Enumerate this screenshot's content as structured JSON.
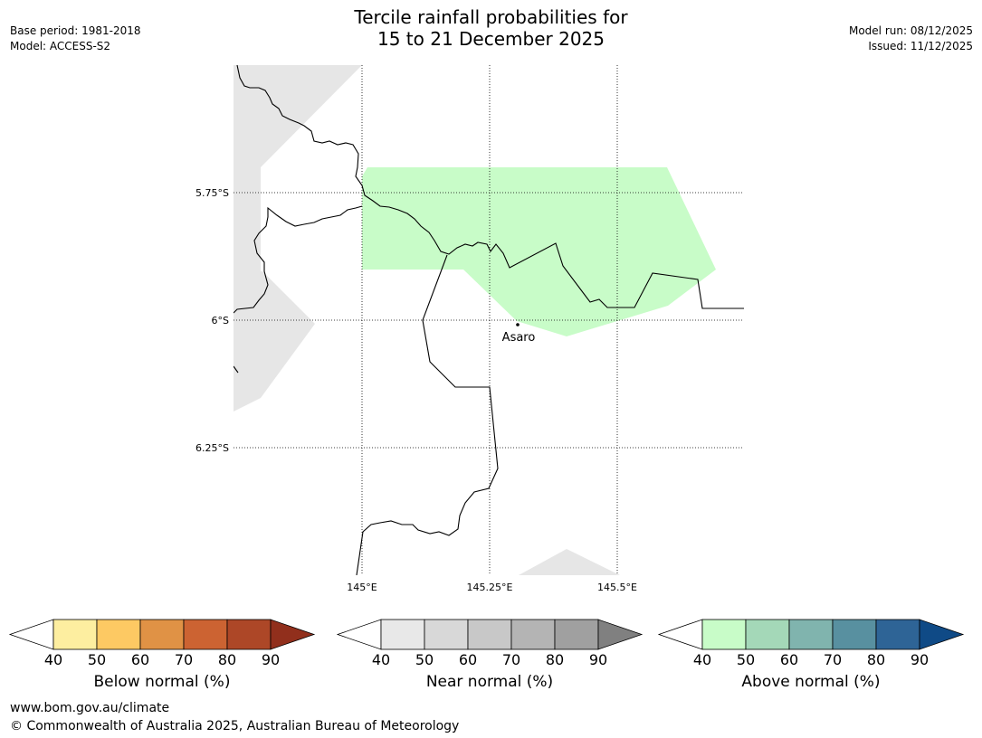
{
  "title": {
    "line1": "Tercile rainfall probabilities for",
    "line2": "15 to 21 December 2025"
  },
  "meta_left": {
    "base_period": "Base period: 1981-2018",
    "model": "Model: ACCESS-S2"
  },
  "meta_right": {
    "model_run": "Model run: 08/12/2025",
    "issued": "Issued: 11/12/2025"
  },
  "map": {
    "lat_labels": [
      "5.75°S",
      "6°S",
      "6.25°S"
    ],
    "lon_labels": [
      "145°E",
      "145.25°E",
      "145.5°E"
    ],
    "place_label": "Asaro"
  },
  "colorbars": [
    {
      "label": "Below normal (%)",
      "ticks": [
        "40",
        "50",
        "60",
        "70",
        "80",
        "90"
      ],
      "colors": [
        "#ffffff",
        "#fdeea0",
        "#fdc963",
        "#e09245",
        "#cc6332",
        "#ad4727",
        "#912f1c"
      ]
    },
    {
      "label": "Near normal (%)",
      "ticks": [
        "40",
        "50",
        "60",
        "70",
        "80",
        "90"
      ],
      "colors": [
        "#ffffff",
        "#e8e8e8",
        "#d8d8d8",
        "#c8c8c8",
        "#b4b4b4",
        "#a0a0a0",
        "#808080"
      ]
    },
    {
      "label": "Above normal (%)",
      "ticks": [
        "40",
        "50",
        "60",
        "70",
        "80",
        "90"
      ],
      "colors": [
        "#ffffff",
        "#c8fcc8",
        "#a4d8b8",
        "#80b4ae",
        "#5890a0",
        "#2e6496",
        "#0f4a86"
      ]
    }
  ],
  "footer": {
    "url": "www.bom.gov.au/climate",
    "copyright": "© Commonwealth of Australia 2025, Australian Bureau of Meteorology"
  },
  "colors": {
    "no_data_grey": "#e6e6e6",
    "above_normal_40_50": "#c8fcc8",
    "border_line": "#000000"
  }
}
